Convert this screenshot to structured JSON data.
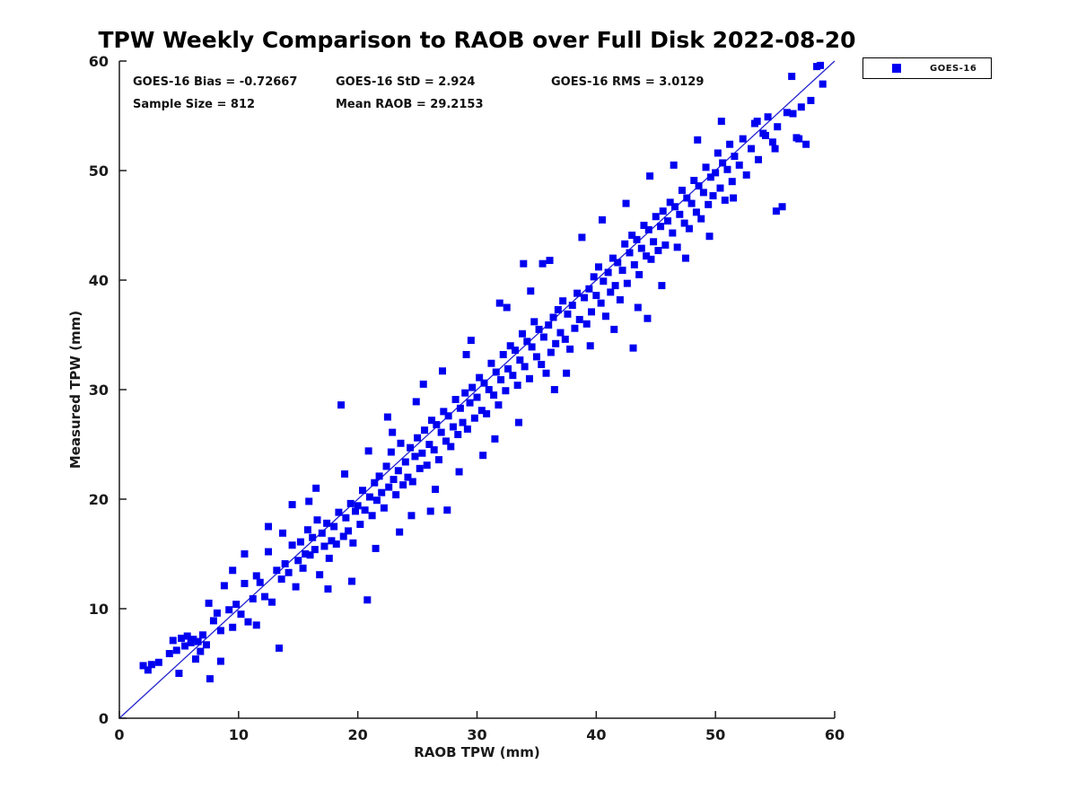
{
  "figure": {
    "background": "#ffffff"
  },
  "chart_data": {
    "type": "scatter",
    "title": "TPW Weekly Comparison to RAOB over Full Disk 2022-08-20",
    "xlabel": "RAOB TPW (mm)",
    "ylabel": "Measured TPW (mm)",
    "xlim": [
      0,
      60
    ],
    "ylim": [
      0,
      60
    ],
    "x_ticks": [
      0,
      10,
      20,
      30,
      40,
      50,
      60
    ],
    "y_ticks": [
      0,
      10,
      20,
      30,
      40,
      50,
      60
    ],
    "grid": false,
    "box": "left-bottom-spines-only",
    "annotations": [
      {
        "text": "GOES-16 Bias = -0.72667"
      },
      {
        "text": "GOES-16 StD = 2.924"
      },
      {
        "text": "GOES-16 RMS = 3.0129"
      },
      {
        "text": "Sample Size = 812"
      },
      {
        "text": "Mean RAOB = 29.2153"
      }
    ],
    "stats": {
      "bias": -0.72667,
      "std": 2.924,
      "rms": 3.0129,
      "sample_size": 812,
      "mean_raob": 29.2153
    },
    "legend": {
      "position": "outside-top-right",
      "entries": [
        {
          "label": "GOES-16",
          "marker": "square",
          "color": "#0000f0"
        }
      ]
    },
    "identity_line": {
      "from": [
        0,
        0
      ],
      "to": [
        60,
        60
      ],
      "color": "#2424cf"
    },
    "series": [
      {
        "name": "GOES-16",
        "marker": "square",
        "color": "#0000f0",
        "points_are_approximate": true,
        "points": [
          [
            2.0,
            4.8
          ],
          [
            2.4,
            4.4
          ],
          [
            2.7,
            4.9
          ],
          [
            3.3,
            5.1
          ],
          [
            4.2,
            5.9
          ],
          [
            4.5,
            7.1
          ],
          [
            4.8,
            6.2
          ],
          [
            5.0,
            4.1
          ],
          [
            5.2,
            7.3
          ],
          [
            5.5,
            6.6
          ],
          [
            5.7,
            7.5
          ],
          [
            6.0,
            6.9
          ],
          [
            6.2,
            7.2
          ],
          [
            6.4,
            5.4
          ],
          [
            6.6,
            7.0
          ],
          [
            6.8,
            6.1
          ],
          [
            7.0,
            7.6
          ],
          [
            7.3,
            6.7
          ],
          [
            7.6,
            3.6
          ],
          [
            7.9,
            8.9
          ],
          [
            8.2,
            9.6
          ],
          [
            8.5,
            5.2
          ],
          [
            8.8,
            12.1
          ],
          [
            9.2,
            9.9
          ],
          [
            9.5,
            8.3
          ],
          [
            9.8,
            10.4
          ],
          [
            10.2,
            9.5
          ],
          [
            10.5,
            12.3
          ],
          [
            10.8,
            8.8
          ],
          [
            11.2,
            10.9
          ],
          [
            11.5,
            13.0
          ],
          [
            11.8,
            12.4
          ],
          [
            12.2,
            11.1
          ],
          [
            12.5,
            15.2
          ],
          [
            12.8,
            10.6
          ],
          [
            13.2,
            13.5
          ],
          [
            13.4,
            6.4
          ],
          [
            13.6,
            12.7
          ],
          [
            13.9,
            14.1
          ],
          [
            14.2,
            13.3
          ],
          [
            14.5,
            15.8
          ],
          [
            14.8,
            12.0
          ],
          [
            15.0,
            14.4
          ],
          [
            15.2,
            16.1
          ],
          [
            15.4,
            13.7
          ],
          [
            15.6,
            15.0
          ],
          [
            15.8,
            17.2
          ],
          [
            16.0,
            14.9
          ],
          [
            16.2,
            16.5
          ],
          [
            16.4,
            15.4
          ],
          [
            16.6,
            18.1
          ],
          [
            16.8,
            13.1
          ],
          [
            17.0,
            16.9
          ],
          [
            17.2,
            15.7
          ],
          [
            17.4,
            17.8
          ],
          [
            17.6,
            14.6
          ],
          [
            17.8,
            16.2
          ],
          [
            18.0,
            17.5
          ],
          [
            18.2,
            15.9
          ],
          [
            18.4,
            18.8
          ],
          [
            18.6,
            28.6
          ],
          [
            18.8,
            16.6
          ],
          [
            19.0,
            18.3
          ],
          [
            19.2,
            17.1
          ],
          [
            19.4,
            19.6
          ],
          [
            19.6,
            16.0
          ],
          [
            19.8,
            18.9
          ],
          [
            20.0,
            19.4
          ],
          [
            20.2,
            17.7
          ],
          [
            20.4,
            20.8
          ],
          [
            20.6,
            19.0
          ],
          [
            20.8,
            10.8
          ],
          [
            21.0,
            20.2
          ],
          [
            21.2,
            18.5
          ],
          [
            21.4,
            21.5
          ],
          [
            21.6,
            19.9
          ],
          [
            21.8,
            22.1
          ],
          [
            22.0,
            20.6
          ],
          [
            22.2,
            19.2
          ],
          [
            22.4,
            23.0
          ],
          [
            22.6,
            21.1
          ],
          [
            22.8,
            24.3
          ],
          [
            23.0,
            21.8
          ],
          [
            23.2,
            20.4
          ],
          [
            23.4,
            22.6
          ],
          [
            23.6,
            25.1
          ],
          [
            23.8,
            21.3
          ],
          [
            24.0,
            23.4
          ],
          [
            24.2,
            22.0
          ],
          [
            24.4,
            24.7
          ],
          [
            24.6,
            21.6
          ],
          [
            24.8,
            23.9
          ],
          [
            25.0,
            25.6
          ],
          [
            25.2,
            22.8
          ],
          [
            25.4,
            24.2
          ],
          [
            25.6,
            26.3
          ],
          [
            25.8,
            23.1
          ],
          [
            26.0,
            25.0
          ],
          [
            26.2,
            27.2
          ],
          [
            26.4,
            24.5
          ],
          [
            26.6,
            26.8
          ],
          [
            26.8,
            23.6
          ],
          [
            27.0,
            26.1
          ],
          [
            27.2,
            28.0
          ],
          [
            27.4,
            25.3
          ],
          [
            27.6,
            27.6
          ],
          [
            27.8,
            24.8
          ],
          [
            28.0,
            26.6
          ],
          [
            28.2,
            29.1
          ],
          [
            28.4,
            25.9
          ],
          [
            28.6,
            28.3
          ],
          [
            28.8,
            27.0
          ],
          [
            29.0,
            29.7
          ],
          [
            29.2,
            26.4
          ],
          [
            29.4,
            28.8
          ],
          [
            29.6,
            30.2
          ],
          [
            29.8,
            27.4
          ],
          [
            30.0,
            29.3
          ],
          [
            30.2,
            31.1
          ],
          [
            30.4,
            28.1
          ],
          [
            30.6,
            30.6
          ],
          [
            30.8,
            27.8
          ],
          [
            31.0,
            30.0
          ],
          [
            31.2,
            32.4
          ],
          [
            31.4,
            29.5
          ],
          [
            31.6,
            31.6
          ],
          [
            31.8,
            28.6
          ],
          [
            32.0,
            30.9
          ],
          [
            32.2,
            33.2
          ],
          [
            32.4,
            29.9
          ],
          [
            32.6,
            31.9
          ],
          [
            32.8,
            34.0
          ],
          [
            33.0,
            31.3
          ],
          [
            33.2,
            33.6
          ],
          [
            33.4,
            30.4
          ],
          [
            33.6,
            32.7
          ],
          [
            33.8,
            35.1
          ],
          [
            34.0,
            32.1
          ],
          [
            34.2,
            34.4
          ],
          [
            34.4,
            31.0
          ],
          [
            34.6,
            33.9
          ],
          [
            34.8,
            36.2
          ],
          [
            35.0,
            33.0
          ],
          [
            35.2,
            35.5
          ],
          [
            35.4,
            32.3
          ],
          [
            35.6,
            34.8
          ],
          [
            35.8,
            31.5
          ],
          [
            36.0,
            35.9
          ],
          [
            36.2,
            33.4
          ],
          [
            36.4,
            36.6
          ],
          [
            36.6,
            34.2
          ],
          [
            36.8,
            37.3
          ],
          [
            37.0,
            35.2
          ],
          [
            37.2,
            38.1
          ],
          [
            37.4,
            34.6
          ],
          [
            37.6,
            36.9
          ],
          [
            37.8,
            33.7
          ],
          [
            38.0,
            37.7
          ],
          [
            38.2,
            35.6
          ],
          [
            38.4,
            38.8
          ],
          [
            38.6,
            36.4
          ],
          [
            38.8,
            43.9
          ],
          [
            39.0,
            38.4
          ],
          [
            39.2,
            36.0
          ],
          [
            39.4,
            39.2
          ],
          [
            39.6,
            37.1
          ],
          [
            39.8,
            40.3
          ],
          [
            40.0,
            38.6
          ],
          [
            40.2,
            41.2
          ],
          [
            40.4,
            37.9
          ],
          [
            40.6,
            39.9
          ],
          [
            40.8,
            36.7
          ],
          [
            41.0,
            40.7
          ],
          [
            41.2,
            38.9
          ],
          [
            41.4,
            42.0
          ],
          [
            41.6,
            39.5
          ],
          [
            41.8,
            41.6
          ],
          [
            42.0,
            38.2
          ],
          [
            42.2,
            40.9
          ],
          [
            42.4,
            43.3
          ],
          [
            42.6,
            39.7
          ],
          [
            42.8,
            42.5
          ],
          [
            43.0,
            44.1
          ],
          [
            43.2,
            41.4
          ],
          [
            43.4,
            43.7
          ],
          [
            43.6,
            40.5
          ],
          [
            43.8,
            42.9
          ],
          [
            44.0,
            45.0
          ],
          [
            44.2,
            42.2
          ],
          [
            44.4,
            44.6
          ],
          [
            44.6,
            41.9
          ],
          [
            44.8,
            43.5
          ],
          [
            45.0,
            45.8
          ],
          [
            45.2,
            42.7
          ],
          [
            45.4,
            44.9
          ],
          [
            45.6,
            46.3
          ],
          [
            45.8,
            43.2
          ],
          [
            46.0,
            45.4
          ],
          [
            46.2,
            47.1
          ],
          [
            46.4,
            44.3
          ],
          [
            46.6,
            46.7
          ],
          [
            46.8,
            43.0
          ],
          [
            47.0,
            46.0
          ],
          [
            47.2,
            48.2
          ],
          [
            47.4,
            45.2
          ],
          [
            47.6,
            47.5
          ],
          [
            47.8,
            44.7
          ],
          [
            48.0,
            47.0
          ],
          [
            48.2,
            49.1
          ],
          [
            48.4,
            46.2
          ],
          [
            48.6,
            48.6
          ],
          [
            48.8,
            45.6
          ],
          [
            49.0,
            48.0
          ],
          [
            49.2,
            50.3
          ],
          [
            49.4,
            46.9
          ],
          [
            49.6,
            49.4
          ],
          [
            49.8,
            47.7
          ],
          [
            50.0,
            49.8
          ],
          [
            50.2,
            51.6
          ],
          [
            50.4,
            48.4
          ],
          [
            50.6,
            50.7
          ],
          [
            50.8,
            47.3
          ],
          [
            51.0,
            50.1
          ],
          [
            51.2,
            52.4
          ],
          [
            51.4,
            49.0
          ],
          [
            51.6,
            51.3
          ],
          [
            52.0,
            50.5
          ],
          [
            52.3,
            52.9
          ],
          [
            52.6,
            49.6
          ],
          [
            53.0,
            52.0
          ],
          [
            53.3,
            54.3
          ],
          [
            53.6,
            51.0
          ],
          [
            54.0,
            53.4
          ],
          [
            54.4,
            54.9
          ],
          [
            54.8,
            52.6
          ],
          [
            55.2,
            54.0
          ],
          [
            55.6,
            46.7
          ],
          [
            56.0,
            55.3
          ],
          [
            56.4,
            58.6
          ],
          [
            56.8,
            53.0
          ],
          [
            57.2,
            55.8
          ],
          [
            57.6,
            52.4
          ],
          [
            58.0,
            56.4
          ],
          [
            58.5,
            59.5
          ],
          [
            59.0,
            57.9
          ],
          [
            23.5,
            17.0
          ],
          [
            24.5,
            18.5
          ],
          [
            26.5,
            20.9
          ],
          [
            27.5,
            19.0
          ],
          [
            28.5,
            22.5
          ],
          [
            30.5,
            24.0
          ],
          [
            31.5,
            25.5
          ],
          [
            33.5,
            27.0
          ],
          [
            35.5,
            41.5
          ],
          [
            36.5,
            30.0
          ],
          [
            37.5,
            31.5
          ],
          [
            39.5,
            34.0
          ],
          [
            41.5,
            35.5
          ],
          [
            43.5,
            37.5
          ],
          [
            44.5,
            49.5
          ],
          [
            45.5,
            39.5
          ],
          [
            47.5,
            42.0
          ],
          [
            48.5,
            52.8
          ],
          [
            49.5,
            44.0
          ],
          [
            50.5,
            54.5
          ],
          [
            19.5,
            12.5
          ],
          [
            17.5,
            11.8
          ],
          [
            21.5,
            15.5
          ],
          [
            22.5,
            27.5
          ],
          [
            25.5,
            30.5
          ],
          [
            29.5,
            34.5
          ],
          [
            32.5,
            37.5
          ],
          [
            34.5,
            39.0
          ],
          [
            16.5,
            21.0
          ],
          [
            14.5,
            19.5
          ],
          [
            12.5,
            17.5
          ],
          [
            10.5,
            15.0
          ],
          [
            9.5,
            13.5
          ],
          [
            8.5,
            8.0
          ],
          [
            7.5,
            10.5
          ],
          [
            11.5,
            8.5
          ],
          [
            40.5,
            45.5
          ],
          [
            42.5,
            47.0
          ],
          [
            46.5,
            50.5
          ],
          [
            51.5,
            47.5
          ],
          [
            53.5,
            54.5
          ],
          [
            54.2,
            53.2
          ],
          [
            55.0,
            52.0
          ],
          [
            56.5,
            55.2
          ],
          [
            57.0,
            52.9
          ],
          [
            58.8,
            59.6
          ],
          [
            55.1,
            46.3
          ],
          [
            44.3,
            36.5
          ],
          [
            43.1,
            33.8
          ],
          [
            36.1,
            41.8
          ],
          [
            33.9,
            41.5
          ],
          [
            31.9,
            37.9
          ],
          [
            29.1,
            33.2
          ],
          [
            27.1,
            31.7
          ],
          [
            24.9,
            28.9
          ],
          [
            22.9,
            26.1
          ],
          [
            20.9,
            24.4
          ],
          [
            18.9,
            22.3
          ],
          [
            15.9,
            19.8
          ],
          [
            13.7,
            16.9
          ],
          [
            26.1,
            18.9
          ]
        ]
      }
    ]
  }
}
